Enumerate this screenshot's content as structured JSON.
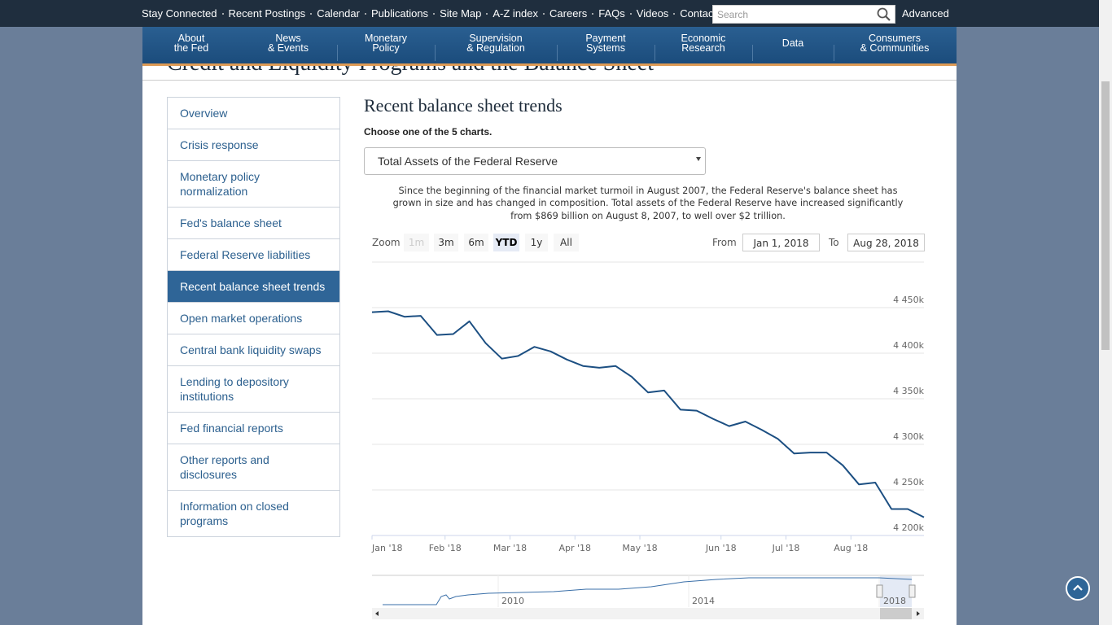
{
  "top_nav": {
    "links": [
      "Stay Connected",
      "Recent Postings",
      "Calendar",
      "Publications",
      "Site Map",
      "A-Z index",
      "Careers",
      "FAQs",
      "Videos",
      "Contact"
    ],
    "search_placeholder": "Search",
    "advanced": "Advanced"
  },
  "main_nav": [
    [
      "About",
      "the Fed"
    ],
    [
      "News",
      "& Events"
    ],
    [
      "Monetary",
      "Policy"
    ],
    [
      "Supervision",
      "& Regulation"
    ],
    [
      "Payment",
      "Systems"
    ],
    [
      "Economic",
      "Research"
    ],
    [
      "Data"
    ],
    [
      "Consumers",
      "& Communities"
    ]
  ],
  "page_title": "Credit and Liquidity Programs and the Balance Sheet",
  "sidebar": {
    "items": [
      "Overview",
      "Crisis response",
      "Monetary policy normalization",
      "Fed's balance sheet",
      "Federal Reserve liabilities",
      "Recent balance sheet trends",
      "Open market operations",
      "Central bank liquidity swaps",
      "Lending to depository institutions",
      "Fed financial reports",
      "Other reports and disclosures",
      "Information on closed programs"
    ],
    "selected_item": 5
  },
  "section": {
    "heading": "Recent balance sheet trends",
    "prompt": "Choose one of the 5 charts.",
    "select_value": "Total Assets of the Federal Reserve",
    "description": "Since the beginning of the financial market turmoil in August 2007, the Federal Reserve's balance sheet has grown in size and has changed in composition. Total assets of the Federal Reserve have increased significantly from $869 billion on August 8, 2007, to well over $2 trillion."
  },
  "range_selector": {
    "zoom_label": "Zoom",
    "buttons": [
      {
        "label": "1m",
        "state": "disabled"
      },
      {
        "label": "3m",
        "state": "normal"
      },
      {
        "label": "6m",
        "state": "normal"
      },
      {
        "label": "YTD",
        "state": "selected"
      },
      {
        "label": "1y",
        "state": "normal"
      },
      {
        "label": "All",
        "state": "normal"
      }
    ],
    "from_label": "From",
    "from_value": "Jan 1, 2018",
    "to_label": "To",
    "to_value": "Aug 28, 2018"
  },
  "chart_data": {
    "type": "line",
    "color": "#1c4f82",
    "categories": [
      "Jan '18",
      null,
      null,
      null,
      null,
      "Feb '18",
      null,
      null,
      null,
      "Mar '18",
      null,
      null,
      null,
      "Apr '18",
      null,
      null,
      null,
      "May '18",
      null,
      null,
      null,
      null,
      "Jun '18",
      null,
      null,
      null,
      "Jul '18",
      null,
      null,
      null,
      "Aug '18",
      null,
      null,
      null,
      null
    ],
    "values": [
      4445,
      4446,
      4440,
      4441,
      4420,
      4421,
      4435,
      4411,
      4394,
      4397,
      4407,
      4402,
      4393,
      4386,
      4384,
      4386,
      4374,
      4357,
      4359,
      4338,
      4337,
      4328,
      4320,
      4325,
      4316,
      4306,
      4290,
      4291,
      4291,
      4277,
      4256,
      4258,
      4229,
      4229,
      4220
    ],
    "ylim": [
      4200,
      4500
    ],
    "yticks": [
      {
        "value": 4200,
        "label": "4 200k"
      },
      {
        "value": 4250,
        "label": "4 250k"
      },
      {
        "value": 4300,
        "label": "4 300k"
      },
      {
        "value": 4350,
        "label": "4 350k"
      },
      {
        "value": 4400,
        "label": "4 400k"
      },
      {
        "value": 4450,
        "label": "4 450k"
      }
    ],
    "grid": true
  },
  "navigator": {
    "year_labels": [
      "2010",
      "2014",
      "2018"
    ]
  }
}
